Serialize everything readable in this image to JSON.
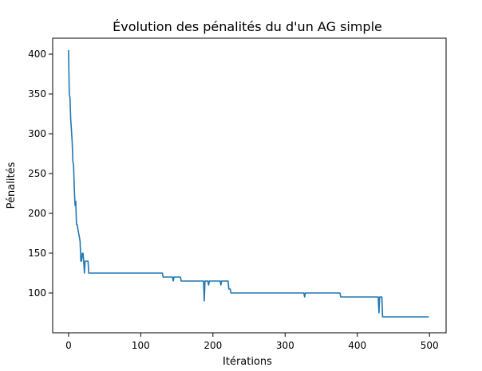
{
  "chart_data": {
    "type": "line",
    "title": "Évolution des pénalités du d'un AG simple",
    "xlabel": "Itérations",
    "ylabel": "Pénalités",
    "xlim": [
      -22,
      523
    ],
    "ylim": [
      50,
      420
    ],
    "xticks": [
      0,
      100,
      200,
      300,
      400,
      500
    ],
    "yticks": [
      100,
      150,
      200,
      250,
      300,
      350,
      400
    ],
    "grid": false,
    "series": [
      {
        "color": "#1f77b4",
        "points": [
          [
            0,
            405
          ],
          [
            1,
            350
          ],
          [
            2,
            345
          ],
          [
            3,
            318
          ],
          [
            4,
            305
          ],
          [
            5,
            290
          ],
          [
            6,
            265
          ],
          [
            7,
            260
          ],
          [
            8,
            230
          ],
          [
            9,
            210
          ],
          [
            10,
            215
          ],
          [
            11,
            186
          ],
          [
            12,
            186
          ],
          [
            13,
            180
          ],
          [
            14,
            175
          ],
          [
            15,
            170
          ],
          [
            16,
            165
          ],
          [
            17,
            140
          ],
          [
            18,
            140
          ],
          [
            19,
            150
          ],
          [
            20,
            150
          ],
          [
            21,
            140
          ],
          [
            22,
            125
          ],
          [
            23,
            140
          ],
          [
            27,
            140
          ],
          [
            28,
            125
          ],
          [
            130,
            125
          ],
          [
            131,
            120
          ],
          [
            144,
            120
          ],
          [
            145,
            115
          ],
          [
            146,
            120
          ],
          [
            155,
            120
          ],
          [
            156,
            115
          ],
          [
            187,
            115
          ],
          [
            188,
            90
          ],
          [
            189,
            115
          ],
          [
            193,
            115
          ],
          [
            194,
            110
          ],
          [
            195,
            115
          ],
          [
            210,
            115
          ],
          [
            211,
            110
          ],
          [
            212,
            115
          ],
          [
            221,
            115
          ],
          [
            222,
            105
          ],
          [
            224,
            105
          ],
          [
            225,
            100
          ],
          [
            326,
            100
          ],
          [
            327,
            95
          ],
          [
            328,
            100
          ],
          [
            376,
            100
          ],
          [
            377,
            95
          ],
          [
            429,
            95
          ],
          [
            430,
            75
          ],
          [
            431,
            95
          ],
          [
            434,
            95
          ],
          [
            435,
            70
          ],
          [
            499,
            70
          ]
        ]
      }
    ]
  }
}
